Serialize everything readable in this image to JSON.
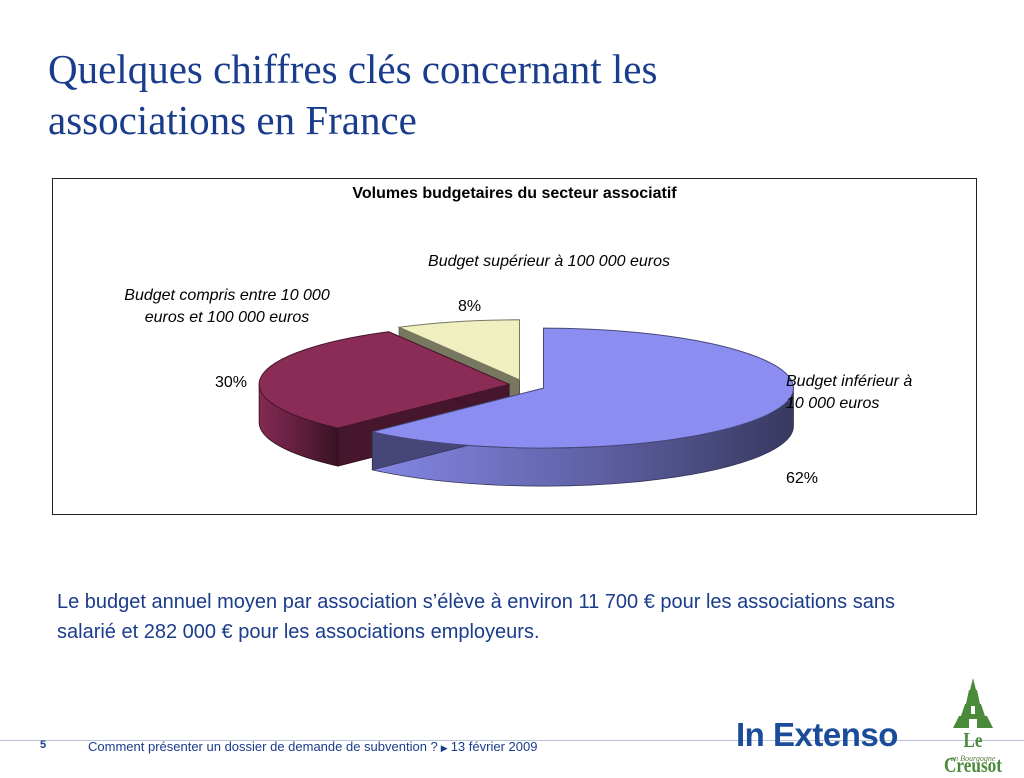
{
  "slide": {
    "title_line1": "Quelques chiffres clés concernant les",
    "title_line2": "associations en France",
    "caption": "Le budget annuel moyen par association s’élève à environ 11 700 € pour les associations sans salarié et 282 000 € pour les associations employeurs.",
    "footer": {
      "page_number": "5",
      "text": "Comment présenter un dossier de demande de subvention ?",
      "arrow": "▶",
      "date": "13 février 2009"
    },
    "logos": {
      "in_extenso": "In Extenso",
      "le_creusot": "Le Creusot",
      "le_creusot_sub": "en Bourgogne"
    }
  },
  "colors": {
    "title": "#1a3c8c",
    "slice_inferieur": "#8b8ef0",
    "slice_compris": "#8b2c57",
    "slice_superieur": "#efefc0"
  },
  "chart_data": {
    "type": "pie",
    "title": "Volumes budgetaires du secteur associatif",
    "style": "3d-exploded",
    "labels": [
      "Budget inférieur à 10 000 euros",
      "Budget compris entre 10 000 euros et 100 000 euros",
      "Budget supérieur à 100 000 euros"
    ],
    "labels_wrapped": [
      [
        "Budget inférieur à",
        "10 000 euros"
      ],
      [
        "Budget compris entre 10 000",
        "euros et 100 000 euros"
      ],
      [
        "Budget supérieur à 100 000 euros"
      ]
    ],
    "values": [
      62,
      30,
      8
    ],
    "value_labels": [
      "62%",
      "30%",
      "8%"
    ],
    "legend": "none"
  }
}
